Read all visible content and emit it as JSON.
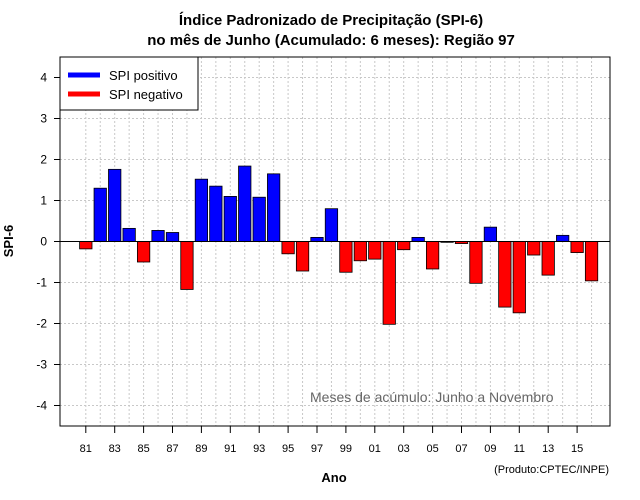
{
  "chart_data": {
    "type": "bar",
    "title_line1": "Índice Padronizado de Precipitação (SPI-6)",
    "title_line2": "no mês de Junho (Acumulado: 6 meses): Região 97",
    "xlabel": "Ano",
    "ylabel": "SPI-6",
    "ylim": [
      -4.5,
      4.5
    ],
    "yticks": [
      -4,
      -3,
      -2,
      -1,
      0,
      1,
      2,
      3,
      4
    ],
    "grid": true,
    "legend_position": "top-left",
    "legend": [
      {
        "label": "SPI positivo",
        "color": "#0000ff"
      },
      {
        "label": "SPI negativo",
        "color": "#ff0000"
      }
    ],
    "annotation": "Meses de acúmulo: Junho a Novembro",
    "credit": "(Produto:CPTEC/INPE)",
    "positive_color": "#0000ff",
    "negative_color": "#ff0000",
    "years": [
      "81",
      "82",
      "83",
      "84",
      "85",
      "86",
      "87",
      "88",
      "89",
      "90",
      "91",
      "92",
      "93",
      "94",
      "95",
      "96",
      "97",
      "98",
      "99",
      "00",
      "01",
      "02",
      "03",
      "04",
      "05",
      "06",
      "07",
      "08",
      "09",
      "10",
      "11",
      "12",
      "13",
      "14",
      "15",
      "16"
    ],
    "xtick_labels": [
      "81",
      "83",
      "85",
      "87",
      "89",
      "91",
      "93",
      "95",
      "97",
      "99",
      "01",
      "03",
      "05",
      "07",
      "09",
      "11",
      "13",
      "15"
    ],
    "values": [
      -0.18,
      1.3,
      1.76,
      0.32,
      -0.5,
      0.27,
      0.22,
      -1.17,
      1.52,
      1.35,
      1.1,
      1.84,
      1.08,
      1.65,
      -0.3,
      -0.72,
      0.1,
      0.8,
      -0.75,
      -0.47,
      -0.43,
      -2.02,
      -0.2,
      0.1,
      -0.67,
      -0.02,
      -0.05,
      -1.02,
      0.35,
      -1.6,
      -1.74,
      -0.33,
      -0.82,
      0.15,
      -0.27,
      -0.96
    ]
  }
}
